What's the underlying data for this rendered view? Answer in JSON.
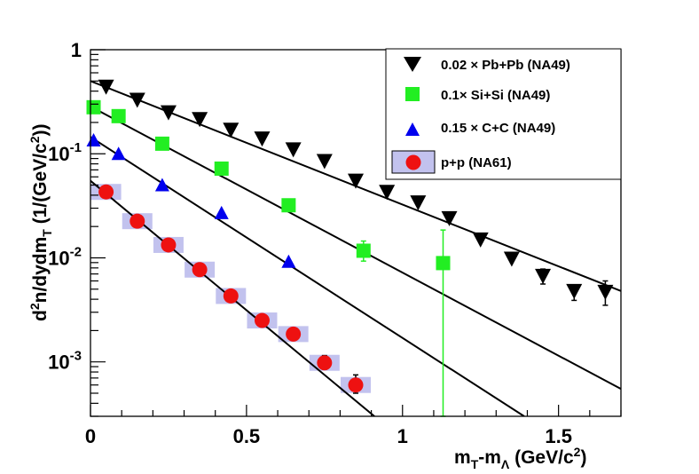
{
  "chart_data": {
    "type": "scatter",
    "title": "",
    "xlabel": {
      "main": "m",
      "sub1": "T",
      "mid": "-m",
      "sub2": "Λ",
      "unit_pre": " (GeV/c",
      "unit_sup": "2",
      "unit_post": ")"
    },
    "ylabel": {
      "pre": "d",
      "sup": "2",
      "mid": "n/dydm",
      "sub": "T",
      "unit_pre": " (1/(GeV/c",
      "unit_sup": "2",
      "unit_post": "))"
    },
    "xlim": [
      0,
      1.7
    ],
    "ylim": [
      0.0003,
      1
    ],
    "yscale": "log",
    "x_ticks": [
      {
        "value": 0,
        "label": "0"
      },
      {
        "value": 0.5,
        "label": "0.5"
      },
      {
        "value": 1,
        "label": "1"
      },
      {
        "value": 1.5,
        "label": "1.5"
      }
    ],
    "y_ticks": [
      {
        "value": 1,
        "base": "1",
        "exp": ""
      },
      {
        "value": 0.1,
        "base": "10",
        "exp": "-1"
      },
      {
        "value": 0.01,
        "base": "10",
        "exp": "-2"
      },
      {
        "value": 0.001,
        "base": "10",
        "exp": "-3"
      }
    ],
    "legend_position": "top-right",
    "series": [
      {
        "name": "0.02 × Pb+Pb (NA49)",
        "marker": "triangle-down",
        "color": "#000000",
        "points": [
          {
            "x": 0.05,
            "y": 0.44
          },
          {
            "x": 0.15,
            "y": 0.33
          },
          {
            "x": 0.25,
            "y": 0.25
          },
          {
            "x": 0.35,
            "y": 0.215
          },
          {
            "x": 0.45,
            "y": 0.17
          },
          {
            "x": 0.55,
            "y": 0.14
          },
          {
            "x": 0.65,
            "y": 0.11
          },
          {
            "x": 0.75,
            "y": 0.085
          },
          {
            "x": 0.85,
            "y": 0.055
          },
          {
            "x": 0.95,
            "y": 0.043
          },
          {
            "x": 1.05,
            "y": 0.034
          },
          {
            "x": 1.15,
            "y": 0.024
          },
          {
            "x": 1.25,
            "y": 0.015
          },
          {
            "x": 1.35,
            "y": 0.0098
          },
          {
            "x": 1.45,
            "y": 0.0067,
            "err_lo": 0.0056,
            "err_hi": 0.0078
          },
          {
            "x": 1.55,
            "y": 0.0048,
            "err_lo": 0.0039,
            "err_hi": 0.0055
          },
          {
            "x": 1.65,
            "y": 0.0047,
            "err_lo": 0.0035,
            "err_hi": 0.006
          }
        ],
        "fit": {
          "x0": 0.0,
          "y0": 0.5,
          "x1": 1.7,
          "y1": 0.0048
        }
      },
      {
        "name": "0.1× Si+Si (NA49)",
        "marker": "square",
        "color": "#22ee22",
        "points": [
          {
            "x": 0.01,
            "y": 0.28
          },
          {
            "x": 0.09,
            "y": 0.23
          },
          {
            "x": 0.23,
            "y": 0.125
          },
          {
            "x": 0.42,
            "y": 0.072
          },
          {
            "x": 0.635,
            "y": 0.032
          },
          {
            "x": 0.875,
            "y": 0.0117,
            "err_lo": 0.0093,
            "err_hi": 0.0145
          },
          {
            "x": 1.13,
            "y": 0.0089,
            "err_lo": 0.0003,
            "err_hi": 0.0185
          }
        ],
        "fit": {
          "x0": 0.0,
          "y0": 0.285,
          "x1": 1.7,
          "y1": 0.00055
        }
      },
      {
        "name": "0.15 × C+C (NA49)",
        "marker": "triangle-up",
        "color": "#0000ee",
        "points": [
          {
            "x": 0.01,
            "y": 0.135
          },
          {
            "x": 0.09,
            "y": 0.1
          },
          {
            "x": 0.23,
            "y": 0.05
          },
          {
            "x": 0.42,
            "y": 0.027
          },
          {
            "x": 0.635,
            "y": 0.0092
          }
        ],
        "fit": {
          "x0": 0.0,
          "y0": 0.145,
          "x1": 1.39,
          "y1": 0.0003
        }
      },
      {
        "name": "p+p (NA61)",
        "marker": "circle",
        "color": "#ee1111",
        "sys_color": "#c2c2ee",
        "points": [
          {
            "x": 0.05,
            "y": 0.043
          },
          {
            "x": 0.15,
            "y": 0.0225
          },
          {
            "x": 0.25,
            "y": 0.0133
          },
          {
            "x": 0.35,
            "y": 0.0077
          },
          {
            "x": 0.45,
            "y": 0.0043
          },
          {
            "x": 0.55,
            "y": 0.0025
          },
          {
            "x": 0.65,
            "y": 0.00185
          },
          {
            "x": 0.75,
            "y": 0.00098,
            "err_lo": 0.00085,
            "err_hi": 0.00115
          },
          {
            "x": 0.85,
            "y": 0.0006,
            "err_lo": 0.0005,
            "err_hi": 0.00075
          }
        ],
        "fit": {
          "x0": 0.0,
          "y0": 0.055,
          "x1": 0.91,
          "y1": 0.0003
        }
      }
    ]
  }
}
